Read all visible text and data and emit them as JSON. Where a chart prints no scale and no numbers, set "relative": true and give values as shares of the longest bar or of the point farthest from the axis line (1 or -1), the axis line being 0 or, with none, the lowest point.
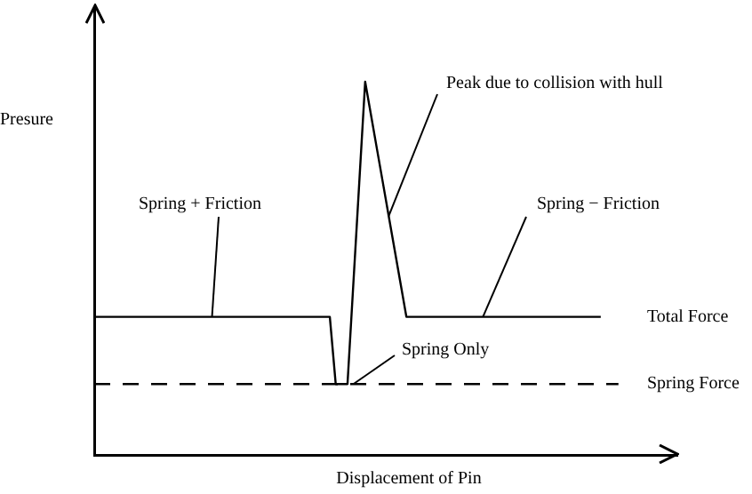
{
  "chart_data": {
    "type": "line",
    "relative": true,
    "xlabel": "Displacement of Pin",
    "ylabel": "Presure",
    "categories": [
      null,
      null,
      null,
      null,
      null,
      null,
      null,
      null,
      null,
      null,
      null,
      null,
      null,
      null,
      null,
      null,
      null,
      null,
      null,
      null,
      null,
      null,
      null,
      null,
      null,
      null,
      null,
      null,
      null,
      null,
      null,
      null,
      null,
      null,
      null,
      null,
      null,
      null,
      null,
      null,
      null,
      null,
      null,
      null,
      null,
      null,
      null,
      null,
      null,
      null,
      null,
      null,
      null,
      null,
      null,
      null,
      null,
      null,
      null,
      null,
      null,
      null,
      null,
      null,
      null,
      null,
      null,
      null,
      null,
      null,
      null,
      null,
      null,
      null,
      null,
      null,
      null,
      null,
      null,
      null,
      null,
      null,
      null,
      null,
      null,
      null,
      null,
      null,
      null,
      null,
      null,
      null,
      null,
      null,
      null,
      null,
      null,
      null,
      null,
      null
    ],
    "series": [
      {
        "name": "Total Force",
        "color": "#000000",
        "line_style": "solid",
        "values": [
          0.37,
          0.37,
          0.37,
          0.37,
          0.37,
          0.37,
          0.37,
          0.37,
          0.37,
          0.37,
          0.37,
          0.37,
          0.37,
          0.37,
          0.37,
          0.37,
          0.37,
          0.37,
          0.37,
          0.37,
          0.37,
          0.37,
          0.37,
          0.37,
          0.37,
          0.37,
          0.37,
          0.37,
          0.37,
          0.37,
          0.37,
          0.37,
          0.37,
          0.37,
          0.37,
          0.37,
          0.37,
          0.37,
          0.37,
          0.37,
          0.37,
          0.19,
          0.19,
          0.19,
          0.46,
          0.73,
          1,
          0.91,
          0.82,
          0.73,
          0.64,
          0.55,
          0.46,
          0.37,
          0.37,
          0.37,
          0.37,
          0.37,
          0.37,
          0.37,
          0.37,
          0.37,
          0.37,
          0.37,
          0.37,
          0.37,
          0.37,
          0.37,
          0.37,
          0.37,
          0.37,
          0.37,
          0.37,
          0.37,
          0.37,
          0.37,
          0.37,
          0.37,
          0.37,
          0.37,
          0.37,
          0.37,
          0.37,
          0.37,
          0.37,
          0.37,
          0.37,
          null,
          null,
          null,
          null,
          null,
          null,
          null,
          null,
          null,
          null,
          null,
          null,
          null
        ]
      },
      {
        "name": "Spring Force",
        "color": "#000000",
        "line_style": "dashed",
        "values": [
          0.19,
          0.19,
          0.19,
          0.19,
          0.19,
          0.19,
          0.19,
          0.19,
          0.19,
          0.19,
          0.19,
          0.19,
          0.19,
          0.19,
          0.19,
          0.19,
          0.19,
          0.19,
          0.19,
          0.19,
          0.19,
          0.19,
          0.19,
          0.19,
          0.19,
          0.19,
          0.19,
          0.19,
          0.19,
          0.19,
          0.19,
          0.19,
          0.19,
          0.19,
          0.19,
          0.19,
          0.19,
          0.19,
          0.19,
          0.19,
          0.19,
          0.19,
          0.19,
          0.19,
          0.19,
          0.19,
          0.19,
          0.19,
          0.19,
          0.19,
          0.19,
          0.19,
          0.19,
          0.19,
          0.19,
          0.19,
          0.19,
          0.19,
          0.19,
          0.19,
          0.19,
          0.19,
          0.19,
          0.19,
          0.19,
          0.19,
          0.19,
          0.19,
          0.19,
          0.19,
          0.19,
          0.19,
          0.19,
          0.19,
          0.19,
          0.19,
          0.19,
          0.19,
          0.19,
          0.19,
          0.19,
          0.19,
          0.19,
          0.19,
          0.19,
          0.19,
          0.19,
          0.19,
          0.19,
          0.19,
          null,
          null,
          null,
          null,
          null,
          null,
          null,
          null,
          null,
          null
        ]
      }
    ],
    "annotations": [
      "Peak due to collision with hull",
      "Spring + Friction",
      "Spring − Friction",
      "Spring Only"
    ],
    "marker": "none",
    "grid": false,
    "legend": false
  }
}
